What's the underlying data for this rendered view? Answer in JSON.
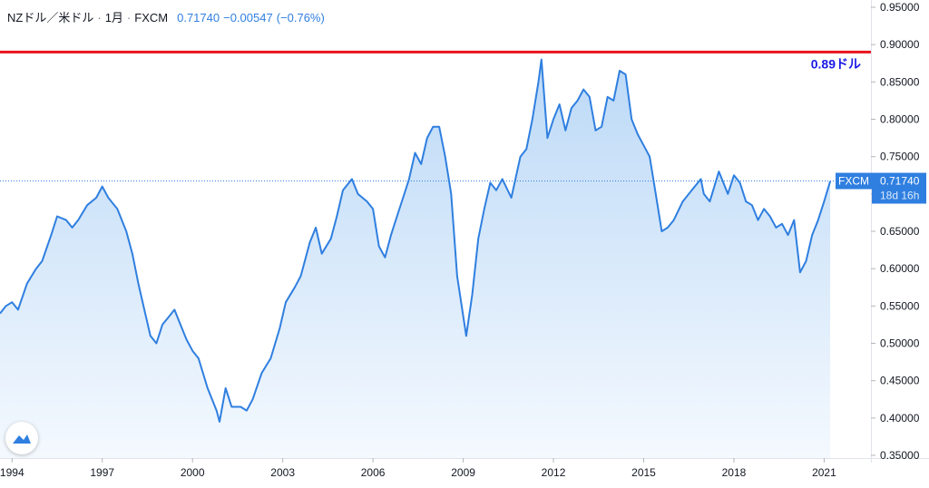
{
  "header": {
    "symbol": "NZドル／米ドル",
    "sep1": "·",
    "interval": "1月",
    "sep2": "·",
    "source": "FXCM",
    "last": "0.71740",
    "change": "−0.00547",
    "change_pct": "(−0.76%)"
  },
  "colors": {
    "line": "#2f7fe0",
    "fill_top": "#bcd9f7",
    "fill_bottom": "#f4f9fe",
    "ref_line": "#e8151b",
    "ref_label": "#1a1ae6",
    "price_tag": "#2f7fe0",
    "axis_text": "#131722"
  },
  "reference": {
    "value": 0.89,
    "label": "0.89ドル"
  },
  "price_tag": {
    "label": "FXCM",
    "value": "0.71740",
    "countdown": "18d 16h"
  },
  "chart_data": {
    "type": "area",
    "title": "NZドル／米ドル",
    "xlabel": "",
    "ylabel": "",
    "x_ticks": [
      "1994",
      "1997",
      "2000",
      "2003",
      "2006",
      "2009",
      "2012",
      "2015",
      "2018",
      "2021"
    ],
    "y_ticks": [
      "0.95000",
      "0.90000",
      "0.85000",
      "0.80000",
      "0.75000",
      "0.70000",
      "0.65000",
      "0.60000",
      "0.55000",
      "0.50000",
      "0.45000",
      "0.40000",
      "0.35000"
    ],
    "xlim": [
      1993.6,
      2021.5
    ],
    "ylim": [
      0.35,
      0.95
    ],
    "grid": false,
    "points": [
      [
        1993.6,
        0.54
      ],
      [
        1993.8,
        0.55
      ],
      [
        1994.0,
        0.555
      ],
      [
        1994.2,
        0.545
      ],
      [
        1994.5,
        0.58
      ],
      [
        1994.8,
        0.6
      ],
      [
        1995.0,
        0.61
      ],
      [
        1995.3,
        0.645
      ],
      [
        1995.5,
        0.67
      ],
      [
        1995.8,
        0.665
      ],
      [
        1996.0,
        0.655
      ],
      [
        1996.2,
        0.665
      ],
      [
        1996.5,
        0.685
      ],
      [
        1996.8,
        0.695
      ],
      [
        1997.0,
        0.71
      ],
      [
        1997.2,
        0.695
      ],
      [
        1997.5,
        0.68
      ],
      [
        1997.8,
        0.65
      ],
      [
        1998.0,
        0.62
      ],
      [
        1998.2,
        0.58
      ],
      [
        1998.4,
        0.545
      ],
      [
        1998.6,
        0.51
      ],
      [
        1998.8,
        0.5
      ],
      [
        1999.0,
        0.525
      ],
      [
        1999.2,
        0.535
      ],
      [
        1999.4,
        0.545
      ],
      [
        1999.6,
        0.525
      ],
      [
        1999.8,
        0.505
      ],
      [
        2000.0,
        0.49
      ],
      [
        2000.2,
        0.48
      ],
      [
        2000.5,
        0.44
      ],
      [
        2000.8,
        0.41
      ],
      [
        2000.9,
        0.395
      ],
      [
        2001.1,
        0.44
      ],
      [
        2001.3,
        0.415
      ],
      [
        2001.6,
        0.415
      ],
      [
        2001.8,
        0.41
      ],
      [
        2002.0,
        0.425
      ],
      [
        2002.3,
        0.46
      ],
      [
        2002.6,
        0.48
      ],
      [
        2002.9,
        0.52
      ],
      [
        2003.1,
        0.555
      ],
      [
        2003.4,
        0.575
      ],
      [
        2003.6,
        0.59
      ],
      [
        2003.9,
        0.635
      ],
      [
        2004.1,
        0.655
      ],
      [
        2004.3,
        0.62
      ],
      [
        2004.6,
        0.64
      ],
      [
        2004.8,
        0.67
      ],
      [
        2005.0,
        0.705
      ],
      [
        2005.3,
        0.72
      ],
      [
        2005.5,
        0.7
      ],
      [
        2005.8,
        0.69
      ],
      [
        2006.0,
        0.68
      ],
      [
        2006.2,
        0.63
      ],
      [
        2006.4,
        0.615
      ],
      [
        2006.6,
        0.645
      ],
      [
        2006.8,
        0.67
      ],
      [
        2007.0,
        0.695
      ],
      [
        2007.2,
        0.72
      ],
      [
        2007.4,
        0.755
      ],
      [
        2007.6,
        0.74
      ],
      [
        2007.8,
        0.775
      ],
      [
        2008.0,
        0.79
      ],
      [
        2008.2,
        0.79
      ],
      [
        2008.4,
        0.75
      ],
      [
        2008.6,
        0.7
      ],
      [
        2008.8,
        0.59
      ],
      [
        2008.95,
        0.55
      ],
      [
        2009.1,
        0.51
      ],
      [
        2009.3,
        0.565
      ],
      [
        2009.5,
        0.64
      ],
      [
        2009.7,
        0.68
      ],
      [
        2009.9,
        0.715
      ],
      [
        2010.1,
        0.705
      ],
      [
        2010.3,
        0.72
      ],
      [
        2010.6,
        0.695
      ],
      [
        2010.9,
        0.75
      ],
      [
        2011.1,
        0.76
      ],
      [
        2011.3,
        0.8
      ],
      [
        2011.5,
        0.85
      ],
      [
        2011.6,
        0.88
      ],
      [
        2011.8,
        0.775
      ],
      [
        2012.0,
        0.8
      ],
      [
        2012.2,
        0.82
      ],
      [
        2012.4,
        0.785
      ],
      [
        2012.6,
        0.815
      ],
      [
        2012.8,
        0.825
      ],
      [
        2013.0,
        0.84
      ],
      [
        2013.2,
        0.83
      ],
      [
        2013.4,
        0.785
      ],
      [
        2013.6,
        0.79
      ],
      [
        2013.8,
        0.83
      ],
      [
        2014.0,
        0.825
      ],
      [
        2014.2,
        0.865
      ],
      [
        2014.4,
        0.86
      ],
      [
        2014.6,
        0.8
      ],
      [
        2014.8,
        0.78
      ],
      [
        2015.0,
        0.765
      ],
      [
        2015.2,
        0.75
      ],
      [
        2015.4,
        0.7
      ],
      [
        2015.6,
        0.65
      ],
      [
        2015.8,
        0.655
      ],
      [
        2016.0,
        0.665
      ],
      [
        2016.3,
        0.69
      ],
      [
        2016.6,
        0.705
      ],
      [
        2016.9,
        0.72
      ],
      [
        2017.0,
        0.7
      ],
      [
        2017.2,
        0.69
      ],
      [
        2017.5,
        0.73
      ],
      [
        2017.8,
        0.7
      ],
      [
        2018.0,
        0.725
      ],
      [
        2018.2,
        0.715
      ],
      [
        2018.4,
        0.69
      ],
      [
        2018.6,
        0.685
      ],
      [
        2018.8,
        0.665
      ],
      [
        2019.0,
        0.68
      ],
      [
        2019.2,
        0.67
      ],
      [
        2019.4,
        0.655
      ],
      [
        2019.6,
        0.66
      ],
      [
        2019.8,
        0.645
      ],
      [
        2020.0,
        0.665
      ],
      [
        2020.1,
        0.63
      ],
      [
        2020.2,
        0.595
      ],
      [
        2020.4,
        0.61
      ],
      [
        2020.6,
        0.645
      ],
      [
        2020.8,
        0.665
      ],
      [
        2021.0,
        0.69
      ],
      [
        2021.2,
        0.717
      ]
    ]
  }
}
